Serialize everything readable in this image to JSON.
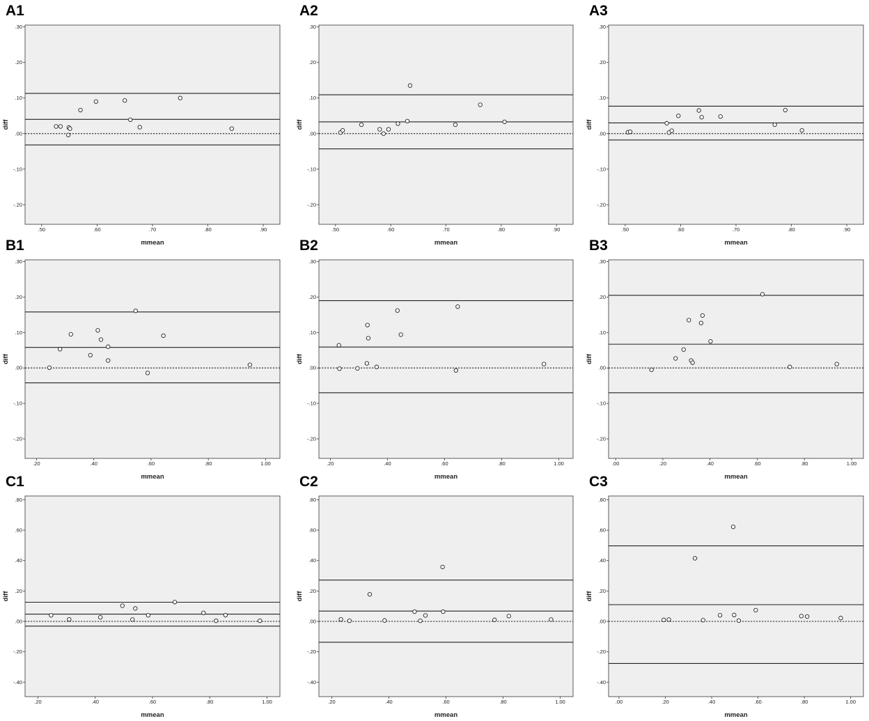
{
  "colors": {
    "plot_background": "#efefef",
    "frame": "#333333",
    "mean_line": "#222222",
    "zero_line": "#222222",
    "marker_edge": "#222222",
    "marker_fill": "#ffffff"
  },
  "chart_data": [
    {
      "panel": "A1",
      "type": "scatter",
      "xlabel": "mmean",
      "ylabel": "diff",
      "xlim": [
        0.47,
        0.93
      ],
      "ylim": [
        -0.255,
        0.305
      ],
      "xticks": [
        0.5,
        0.6,
        0.7,
        0.8,
        0.9
      ],
      "xtick_labels": [
        ".50",
        ".60",
        ".70",
        ".80",
        ".90"
      ],
      "yticks": [
        -0.2,
        -0.1,
        0.0,
        0.1,
        0.2,
        0.3
      ],
      "ytick_labels": [
        "-.20",
        "-.10",
        ".00",
        ".10",
        ".20",
        ".30"
      ],
      "ref_lines": {
        "upper_loa": 0.113,
        "mean": 0.04,
        "zero": 0.0,
        "lower_loa": -0.032
      },
      "x": [
        0.526,
        0.534,
        0.548,
        0.549,
        0.551,
        0.57,
        0.598,
        0.65,
        0.66,
        0.677,
        0.75,
        0.843
      ],
      "y": [
        0.02,
        0.02,
        -0.004,
        0.017,
        0.014,
        0.066,
        0.09,
        0.093,
        0.039,
        0.018,
        0.1,
        0.014
      ]
    },
    {
      "panel": "A2",
      "type": "scatter",
      "xlabel": "mmean",
      "ylabel": "diff",
      "xlim": [
        0.47,
        0.93
      ],
      "ylim": [
        -0.255,
        0.305
      ],
      "xticks": [
        0.5,
        0.6,
        0.7,
        0.8,
        0.9
      ],
      "xtick_labels": [
        ".50",
        ".60",
        ".70",
        ".80",
        ".90"
      ],
      "yticks": [
        -0.2,
        -0.1,
        0.0,
        0.1,
        0.2,
        0.3
      ],
      "ytick_labels": [
        "-.20",
        "-.10",
        ".00",
        ".10",
        ".20",
        ".30"
      ],
      "ref_lines": {
        "upper_loa": 0.109,
        "mean": 0.033,
        "zero": 0.0,
        "lower_loa": -0.043
      },
      "x": [
        0.509,
        0.513,
        0.547,
        0.58,
        0.587,
        0.596,
        0.613,
        0.63,
        0.635,
        0.717,
        0.762,
        0.806
      ],
      "y": [
        0.003,
        0.009,
        0.025,
        0.012,
        0.0,
        0.012,
        0.028,
        0.035,
        0.135,
        0.025,
        0.081,
        0.033
      ]
    },
    {
      "panel": "A3",
      "type": "scatter",
      "xlabel": "mmean",
      "ylabel": "diff",
      "xlim": [
        0.47,
        0.93
      ],
      "ylim": [
        -0.255,
        0.305
      ],
      "xticks": [
        0.5,
        0.6,
        0.7,
        0.8,
        0.9
      ],
      "xtick_labels": [
        ".50",
        ".60",
        ".70",
        ".80",
        ".90"
      ],
      "yticks": [
        -0.2,
        -0.1,
        0.0,
        0.1,
        0.2,
        0.3
      ],
      "ytick_labels": [
        "-.20",
        "-.10",
        ".00",
        ".10",
        ".20",
        ".30"
      ],
      "ref_lines": {
        "upper_loa": 0.077,
        "mean": 0.03,
        "zero": 0.0,
        "lower_loa": -0.018
      },
      "x": [
        0.505,
        0.509,
        0.575,
        0.579,
        0.584,
        0.596,
        0.633,
        0.638,
        0.672,
        0.77,
        0.789,
        0.819
      ],
      "y": [
        0.004,
        0.005,
        0.029,
        0.003,
        0.008,
        0.05,
        0.065,
        0.046,
        0.048,
        0.025,
        0.066,
        0.009
      ]
    },
    {
      "panel": "B1",
      "type": "scatter",
      "xlabel": "mmean",
      "ylabel": "diff",
      "xlim": [
        0.16,
        1.05
      ],
      "ylim": [
        -0.255,
        0.305
      ],
      "xticks": [
        0.2,
        0.4,
        0.6,
        0.8,
        1.0
      ],
      "xtick_labels": [
        ".20",
        ".40",
        ".60",
        ".80",
        "1.00"
      ],
      "yticks": [
        -0.2,
        -0.1,
        0.0,
        0.1,
        0.2,
        0.3
      ],
      "ytick_labels": [
        "-.20",
        "-.10",
        ".00",
        ".10",
        ".20",
        ".30"
      ],
      "ref_lines": {
        "upper_loa": 0.158,
        "mean": 0.058,
        "zero": 0.0,
        "lower_loa": -0.042
      },
      "x": [
        0.245,
        0.282,
        0.32,
        0.388,
        0.414,
        0.425,
        0.45,
        0.45,
        0.546,
        0.588,
        0.643,
        0.945
      ],
      "y": [
        0.001,
        0.053,
        0.095,
        0.036,
        0.106,
        0.08,
        0.06,
        0.021,
        0.161,
        -0.014,
        0.091,
        0.009
      ]
    },
    {
      "panel": "B2",
      "type": "scatter",
      "xlabel": "mmean",
      "ylabel": "diff",
      "xlim": [
        0.16,
        1.05
      ],
      "ylim": [
        -0.255,
        0.305
      ],
      "xticks": [
        0.2,
        0.4,
        0.6,
        0.8,
        1.0
      ],
      "xtick_labels": [
        ".20",
        ".40",
        ".60",
        ".80",
        "1.00"
      ],
      "yticks": [
        -0.2,
        -0.1,
        0.0,
        0.1,
        0.2,
        0.3
      ],
      "ytick_labels": [
        "-.20",
        "-.10",
        ".00",
        ".10",
        ".20",
        ".30"
      ],
      "ref_lines": {
        "upper_loa": 0.19,
        "mean": 0.059,
        "zero": 0.0,
        "lower_loa": -0.07
      },
      "x": [
        0.23,
        0.232,
        0.295,
        0.328,
        0.33,
        0.333,
        0.362,
        0.435,
        0.447,
        0.64,
        0.646,
        0.948
      ],
      "y": [
        0.064,
        -0.002,
        -0.001,
        0.013,
        0.121,
        0.084,
        0.003,
        0.162,
        0.094,
        -0.007,
        0.173,
        0.011
      ]
    },
    {
      "panel": "B3",
      "type": "scatter",
      "xlabel": "mmean",
      "ylabel": "diff",
      "xlim": [
        -0.03,
        1.05
      ],
      "ylim": [
        -0.255,
        0.305
      ],
      "xticks": [
        0.0,
        0.2,
        0.4,
        0.6,
        0.8,
        1.0
      ],
      "xtick_labels": [
        ".00",
        ".20",
        ".40",
        ".60",
        ".80",
        "1.00"
      ],
      "yticks": [
        -0.2,
        -0.1,
        0.0,
        0.1,
        0.2,
        0.3
      ],
      "ytick_labels": [
        "-.20",
        "-.10",
        ".00",
        ".10",
        ".20",
        ".30"
      ],
      "ref_lines": {
        "upper_loa": 0.205,
        "mean": 0.067,
        "zero": 0.0,
        "lower_loa": -0.07
      },
      "x": [
        0.152,
        0.254,
        0.288,
        0.31,
        0.32,
        0.326,
        0.362,
        0.368,
        0.402,
        0.622,
        0.738,
        0.937
      ],
      "y": [
        -0.005,
        0.027,
        0.052,
        0.135,
        0.021,
        0.015,
        0.127,
        0.148,
        0.075,
        0.208,
        0.003,
        0.011
      ]
    },
    {
      "panel": "C1",
      "type": "scatter",
      "xlabel": "mmean",
      "ylabel": "diff",
      "xlim": [
        0.155,
        1.045
      ],
      "ylim": [
        -0.495,
        0.825
      ],
      "xticks": [
        0.2,
        0.4,
        0.6,
        0.8,
        1.0
      ],
      "xtick_labels": [
        ".20",
        ".40",
        ".60",
        ".80",
        "1.00"
      ],
      "yticks": [
        -0.4,
        -0.2,
        0.0,
        0.2,
        0.4,
        0.6,
        0.8
      ],
      "ytick_labels": [
        "-.40",
        "-.20",
        ".00",
        ".20",
        ".40",
        ".60",
        ".80"
      ],
      "ref_lines": {
        "upper_loa": 0.126,
        "mean": 0.048,
        "zero": 0.0,
        "lower_loa": -0.031
      },
      "x": [
        0.246,
        0.309,
        0.418,
        0.495,
        0.53,
        0.54,
        0.585,
        0.678,
        0.778,
        0.822,
        0.855,
        0.975
      ],
      "y": [
        0.04,
        0.013,
        0.027,
        0.103,
        0.012,
        0.085,
        0.04,
        0.127,
        0.056,
        0.004,
        0.041,
        0.004
      ]
    },
    {
      "panel": "C2",
      "type": "scatter",
      "xlabel": "mmean",
      "ylabel": "diff",
      "xlim": [
        0.155,
        1.045
      ],
      "ylim": [
        -0.495,
        0.825
      ],
      "xticks": [
        0.2,
        0.4,
        0.6,
        0.8,
        1.0
      ],
      "xtick_labels": [
        ".20",
        ".40",
        ".60",
        ".80",
        "1.00"
      ],
      "yticks": [
        -0.4,
        -0.2,
        0.0,
        0.2,
        0.4,
        0.6,
        0.8
      ],
      "ytick_labels": [
        "-.40",
        "-.20",
        ".00",
        ".20",
        ".40",
        ".60",
        ".80"
      ],
      "ref_lines": {
        "upper_loa": 0.272,
        "mean": 0.068,
        "zero": 0.0,
        "lower_loa": -0.137
      },
      "x": [
        0.232,
        0.262,
        0.333,
        0.385,
        0.49,
        0.51,
        0.528,
        0.588,
        0.59,
        0.77,
        0.82,
        0.968
      ],
      "y": [
        0.013,
        0.004,
        0.178,
        0.006,
        0.064,
        0.004,
        0.039,
        0.358,
        0.064,
        0.01,
        0.035,
        0.012
      ]
    },
    {
      "panel": "C3",
      "type": "scatter",
      "xlabel": "mmean",
      "ylabel": "diff",
      "xlim": [
        -0.045,
        1.055
      ],
      "ylim": [
        -0.495,
        0.825
      ],
      "xticks": [
        0.0,
        0.2,
        0.4,
        0.6,
        0.8,
        1.0
      ],
      "xtick_labels": [
        ".00",
        ".20",
        ".40",
        ".60",
        ".80",
        "1.00"
      ],
      "yticks": [
        -0.4,
        -0.2,
        0.0,
        0.2,
        0.4,
        0.6,
        0.8
      ],
      "ytick_labels": [
        "-.40",
        "-.20",
        ".00",
        ".20",
        ".40",
        ".60",
        ".80"
      ],
      "ref_lines": {
        "upper_loa": 0.497,
        "mean": 0.11,
        "zero": 0.0,
        "lower_loa": -0.277
      },
      "x": [
        0.193,
        0.215,
        0.328,
        0.363,
        0.436,
        0.493,
        0.497,
        0.517,
        0.59,
        0.787,
        0.812,
        0.957
      ],
      "y": [
        0.01,
        0.012,
        0.415,
        0.008,
        0.04,
        0.622,
        0.042,
        0.005,
        0.074,
        0.035,
        0.032,
        0.022
      ]
    }
  ]
}
